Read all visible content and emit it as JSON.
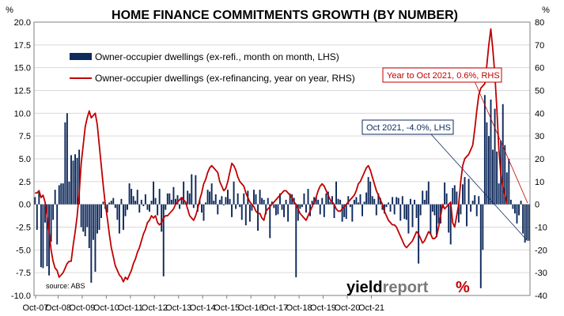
{
  "chart_data": {
    "type": "bar",
    "title": "HOME FINANCE COMMITMENTS GROWTH (BY NUMBER)",
    "y_left_unit": "%",
    "y_right_unit": "%",
    "y_left_range": [
      -10,
      20
    ],
    "y_right_range": [
      -40,
      80
    ],
    "y_left_ticks": [
      "-10.0",
      "-7.5",
      "-5.0",
      "-2.5",
      "0.0",
      "2.5",
      "5.0",
      "7.5",
      "10.0",
      "12.5",
      "15.0",
      "17.5",
      "20.0"
    ],
    "y_right_ticks": [
      "-40",
      "-30",
      "-20",
      "-10",
      "0",
      "10",
      "20",
      "30",
      "40",
      "50",
      "60",
      "70",
      "80"
    ],
    "x_tick_labels": [
      "Oct-07",
      "Oct-08",
      "Oct-09",
      "Oct-10",
      "Oct-11",
      "Oct-12",
      "Oct-13",
      "Oct-14",
      "Oct-15",
      "Oct-16",
      "Oct-17",
      "Oct-18",
      "Oct-19",
      "Oct-20",
      "Oct-21"
    ],
    "grid": true,
    "legend_position": "top-left",
    "x_start": "Oct-07",
    "x_end": "Oct-21",
    "series": [
      {
        "name": "Owner-occupier dwellings (ex-refi., month on month, LHS)",
        "type": "bar",
        "axis": "left",
        "color": "#0f2a5c",
        "values": [
          0.8,
          -2.8,
          1.5,
          -6.9,
          -7,
          -2,
          -6.8,
          -7.8,
          -4.1,
          -1.7,
          1.6,
          -4.4,
          2.1,
          2.3,
          2.3,
          9,
          10,
          2.5,
          5.4,
          4.8,
          5.5,
          5.1,
          6,
          -2.5,
          -3,
          -3.5,
          -2.5,
          -4.8,
          -8.6,
          -3.9,
          -7.4,
          -3.2,
          -2.8,
          -1.5,
          0.3,
          -0.5,
          -0.9,
          0.2,
          0.4,
          0.7,
          -0.4,
          -1.7,
          -3.2,
          0.6,
          -2.8,
          -1.3,
          -0.6,
          2.3,
          1.7,
          0.9,
          0.4,
          1.6,
          -0.9,
          0.5,
          -0.2,
          1.1,
          -0.6,
          -0.8,
          0.4,
          2.5,
          0.7,
          -1.2,
          1.7,
          -3,
          -7.9,
          -0.6,
          1.2,
          1.2,
          0.5,
          1.9,
          0.6,
          1,
          -0.5,
          0.7,
          2.5,
          0.3,
          1.5,
          1.2,
          3.3,
          -0.4,
          3.2,
          -0.8,
          0.5,
          -0.9,
          -1.8,
          0.2,
          1.6,
          1.4,
          2.3,
          0.4,
          1.1,
          -1.1,
          0.5,
          0.9,
          -0.1,
          0.8,
          1.6,
          0.6,
          -1.4,
          2.5,
          -0.5,
          1.2,
          -0.3,
          -1.7,
          1.2,
          -2.3,
          1.5,
          -1.9,
          -0.7,
          1.6,
          1.1,
          -2.9,
          1.6,
          0.7,
          0.5,
          -1.1,
          0.7,
          -3.7,
          0.3,
          -0.4,
          -1.2,
          -1.1,
          1.2,
          -0.6,
          -1.4,
          0.5,
          -1.9,
          1.2,
          1.1,
          0.7,
          -8,
          -1.8,
          -0.5,
          -0.3,
          1.2,
          -0.9,
          1.7,
          -1.3,
          0.4,
          0.8,
          0.8,
          0.5,
          -1.1,
          0.7,
          -1.4,
          1.2,
          1.4,
          0.3,
          0.9,
          -1.5,
          2.5,
          0.6,
          0.5,
          -1.9,
          -1.4,
          -1.6,
          0.9,
          -0.3,
          -1.9,
          0.5,
          0.8,
          0.2,
          1.1,
          -1.3,
          0.3,
          1.3,
          3,
          2.5,
          0.9,
          0.6,
          -1.2,
          1.2,
          0.7,
          -0.6,
          -1,
          -0.3,
          0.2,
          -0.8,
          0.8,
          -1.1,
          0.8,
          0.7,
          -1.8,
          0.9,
          -1.6,
          -1.7,
          -3.2,
          0.6,
          -2.5,
          0.5,
          -1.5,
          -6.5,
          -1.2,
          1.5,
          0.5,
          1.5,
          2.5,
          -3.3,
          -0.8,
          -1.2,
          -3.6,
          -2.1,
          -2.1,
          -0.4,
          2.4,
          1.2,
          -3.1,
          -4.4,
          1.8,
          2.1,
          1.4,
          -2,
          -1.1,
          2.2,
          3,
          -2.4,
          2.8,
          -0.8,
          0.4,
          1,
          -1.3,
          0.9,
          -9.2,
          -5,
          12,
          9,
          7.5,
          11.5,
          6,
          10.5,
          5.8,
          2.3,
          7,
          11,
          6.5,
          3.5,
          5,
          0.5,
          -0.5,
          -1,
          -2.1,
          -1.2,
          0.4,
          -3.2,
          -4.2,
          -3.9,
          -4
        ]
      },
      {
        "name": "Owner-occupier dwellings (ex-refinancing, year on year, RHS)",
        "type": "line",
        "axis": "right",
        "color": "#c00000",
        "values": [
          5,
          5,
          6,
          3,
          4,
          1,
          -5,
          -12,
          -20,
          -25,
          -28,
          -29,
          -32,
          -31,
          -30,
          -28,
          -26,
          -25,
          -25,
          -18,
          -12,
          -5,
          5,
          18,
          26,
          34,
          38,
          41,
          38,
          39,
          40,
          35,
          26,
          17,
          8,
          0,
          -6,
          -13,
          -19,
          -23,
          -27,
          -29,
          -31,
          -32,
          -34,
          -32,
          -33,
          -31,
          -29,
          -26,
          -24,
          -21,
          -19,
          -16,
          -13,
          -11,
          -8,
          -7,
          -5,
          -6,
          -5,
          -8,
          -9,
          -8,
          -6,
          -5,
          -5,
          -4,
          -3,
          -2,
          0,
          1,
          2,
          3,
          2,
          1,
          -2,
          -5,
          -6,
          -7,
          -5,
          -2,
          2,
          5,
          9,
          11,
          14,
          16,
          17,
          16,
          15,
          14,
          10,
          8,
          6,
          7,
          10,
          14,
          18,
          17,
          15,
          12,
          10,
          9,
          8,
          5,
          3,
          1,
          0,
          -1,
          -3,
          -4,
          -4,
          -6,
          -7,
          -3,
          -2,
          -1,
          0,
          1,
          2,
          3,
          4,
          5,
          6,
          6,
          5,
          4,
          3,
          1,
          0,
          -2,
          -4,
          -5,
          -6,
          -7,
          -5,
          -3,
          -1,
          1,
          3,
          6,
          8,
          9,
          8,
          6,
          4,
          2,
          1,
          0,
          -2,
          -3,
          -3,
          -2,
          -1,
          0,
          1,
          2,
          3,
          4,
          6,
          9,
          10,
          12,
          14,
          16,
          17,
          15,
          12,
          9,
          6,
          4,
          2,
          0,
          -3,
          -5,
          -7,
          -8,
          -9,
          -9,
          -10,
          -12,
          -14,
          -16,
          -18,
          -19,
          -18,
          -17,
          -16,
          -14,
          -12,
          -13,
          -15,
          -17,
          -16,
          -14,
          -12,
          -13,
          -15,
          -15,
          -14,
          -10,
          -5,
          0,
          -2,
          -1,
          0,
          1,
          -8,
          -10,
          -5,
          0,
          10,
          17,
          20,
          21,
          22,
          24,
          26,
          33,
          41,
          48,
          51,
          52,
          53,
          61,
          70,
          77,
          68,
          57,
          42,
          24,
          13,
          8,
          4,
          0.6
        ]
      }
    ],
    "annotations": [
      {
        "text": "Year to Oct 2021, 0.6%, RHS",
        "series": "Owner-occupier dwellings (ex-refinancing, year on year, RHS)"
      },
      {
        "text": "Oct 2021, -4.0%, LHS",
        "series": "Owner-occupier dwellings (ex-refi., month on month, LHS)"
      }
    ],
    "source": "source: ABS"
  },
  "brand": {
    "name_part1": "yield",
    "name_part2": "report",
    "symbol": "%",
    "color_part1": "#000000",
    "color_part2": "#7a7a7a",
    "symbol_left_color": "#2e8b3d",
    "symbol_right_color": "#c00000"
  }
}
